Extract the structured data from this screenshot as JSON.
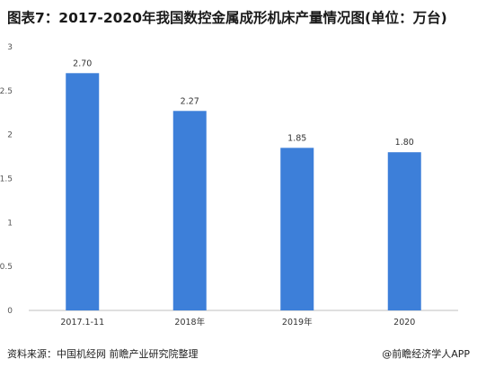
{
  "chart_data": {
    "type": "bar",
    "title": "图表7：2017-2020年我国数控金属成形机床产量情况图(单位：万台)",
    "categories": [
      "2017.1-11",
      "2018年",
      "2019年",
      "2020"
    ],
    "values": [
      2.7,
      2.27,
      1.85,
      1.8
    ],
    "value_labels": [
      "2.70",
      "2.27",
      "1.85",
      "1.80"
    ],
    "ylim": [
      0,
      3
    ],
    "yticks": [
      "0",
      "0.5",
      "1",
      "1.5",
      "2",
      "2.5",
      "3"
    ],
    "xlabel": "",
    "ylabel": "",
    "bar_color": "#3d7fd9",
    "grid": false,
    "legend": "none"
  },
  "footer": {
    "source": "资料来源：中国机经网 前瞻产业研究院整理",
    "brand": "@前瞻经济学人APP"
  }
}
